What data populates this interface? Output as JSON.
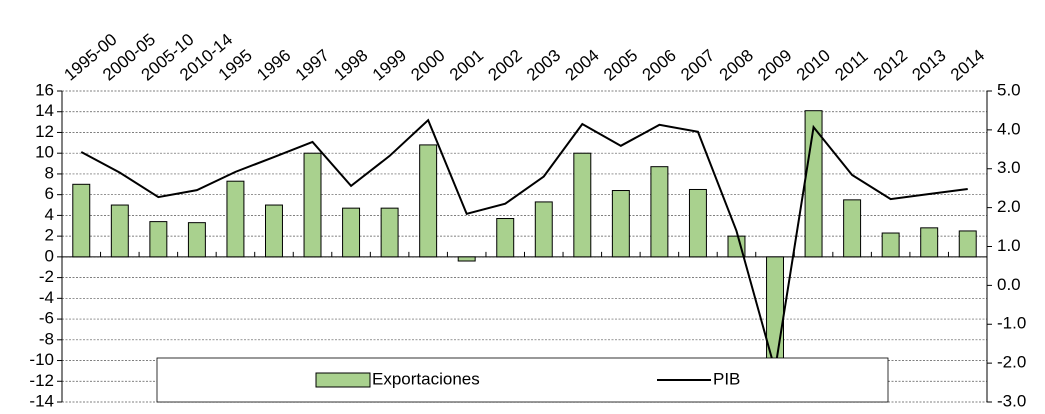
{
  "chart_data": {
    "type": "bar_line",
    "categories": [
      "1995-00",
      "2000-05",
      "2005-10",
      "2010-14",
      "1995",
      "1996",
      "1997",
      "1998",
      "1999",
      "2000",
      "2001",
      "2002",
      "2003",
      "2004",
      "2005",
      "2006",
      "2007",
      "2008",
      "2009",
      "2010",
      "2011",
      "2012",
      "2013",
      "2014"
    ],
    "series": [
      {
        "name": "Exportaciones",
        "type": "bar",
        "color": "#a9d18e",
        "values": [
          7.0,
          5.0,
          3.4,
          3.3,
          7.3,
          5.0,
          10.0,
          4.7,
          4.7,
          10.8,
          -0.4,
          3.7,
          5.3,
          10.0,
          6.4,
          8.7,
          6.5,
          2.0,
          -11.0,
          14.1,
          5.5,
          2.3,
          2.8,
          2.5
        ]
      },
      {
        "name": "PIB",
        "type": "line",
        "axis": "y2",
        "color": "#000000",
        "values": [
          3.43,
          2.9,
          2.27,
          2.45,
          2.92,
          3.3,
          3.69,
          2.56,
          3.33,
          4.25,
          1.84,
          2.1,
          2.8,
          4.15,
          3.59,
          4.13,
          3.95,
          1.4,
          -2.17,
          4.07,
          2.84,
          2.22,
          2.35,
          2.48
        ]
      }
    ],
    "ylim": [
      -14,
      16
    ],
    "yticks": [
      -14,
      -12,
      -10,
      -8,
      -6,
      -4,
      -2,
      0,
      2,
      4,
      6,
      8,
      10,
      12,
      14,
      16
    ],
    "y2lim": [
      -3,
      5
    ],
    "y2ticks": [
      {
        "value": -3,
        "label": "-3.0"
      },
      {
        "value": -2,
        "label": "-2.0"
      },
      {
        "value": -1,
        "label": "-1.0"
      },
      {
        "value": 0,
        "label": "0.0"
      },
      {
        "value": 1,
        "label": "1.0"
      },
      {
        "value": 2,
        "label": "2.0"
      },
      {
        "value": 3,
        "label": "3.0"
      },
      {
        "value": 4,
        "label": "4.0"
      },
      {
        "value": 5,
        "label": "5.0"
      }
    ],
    "grid": true
  }
}
